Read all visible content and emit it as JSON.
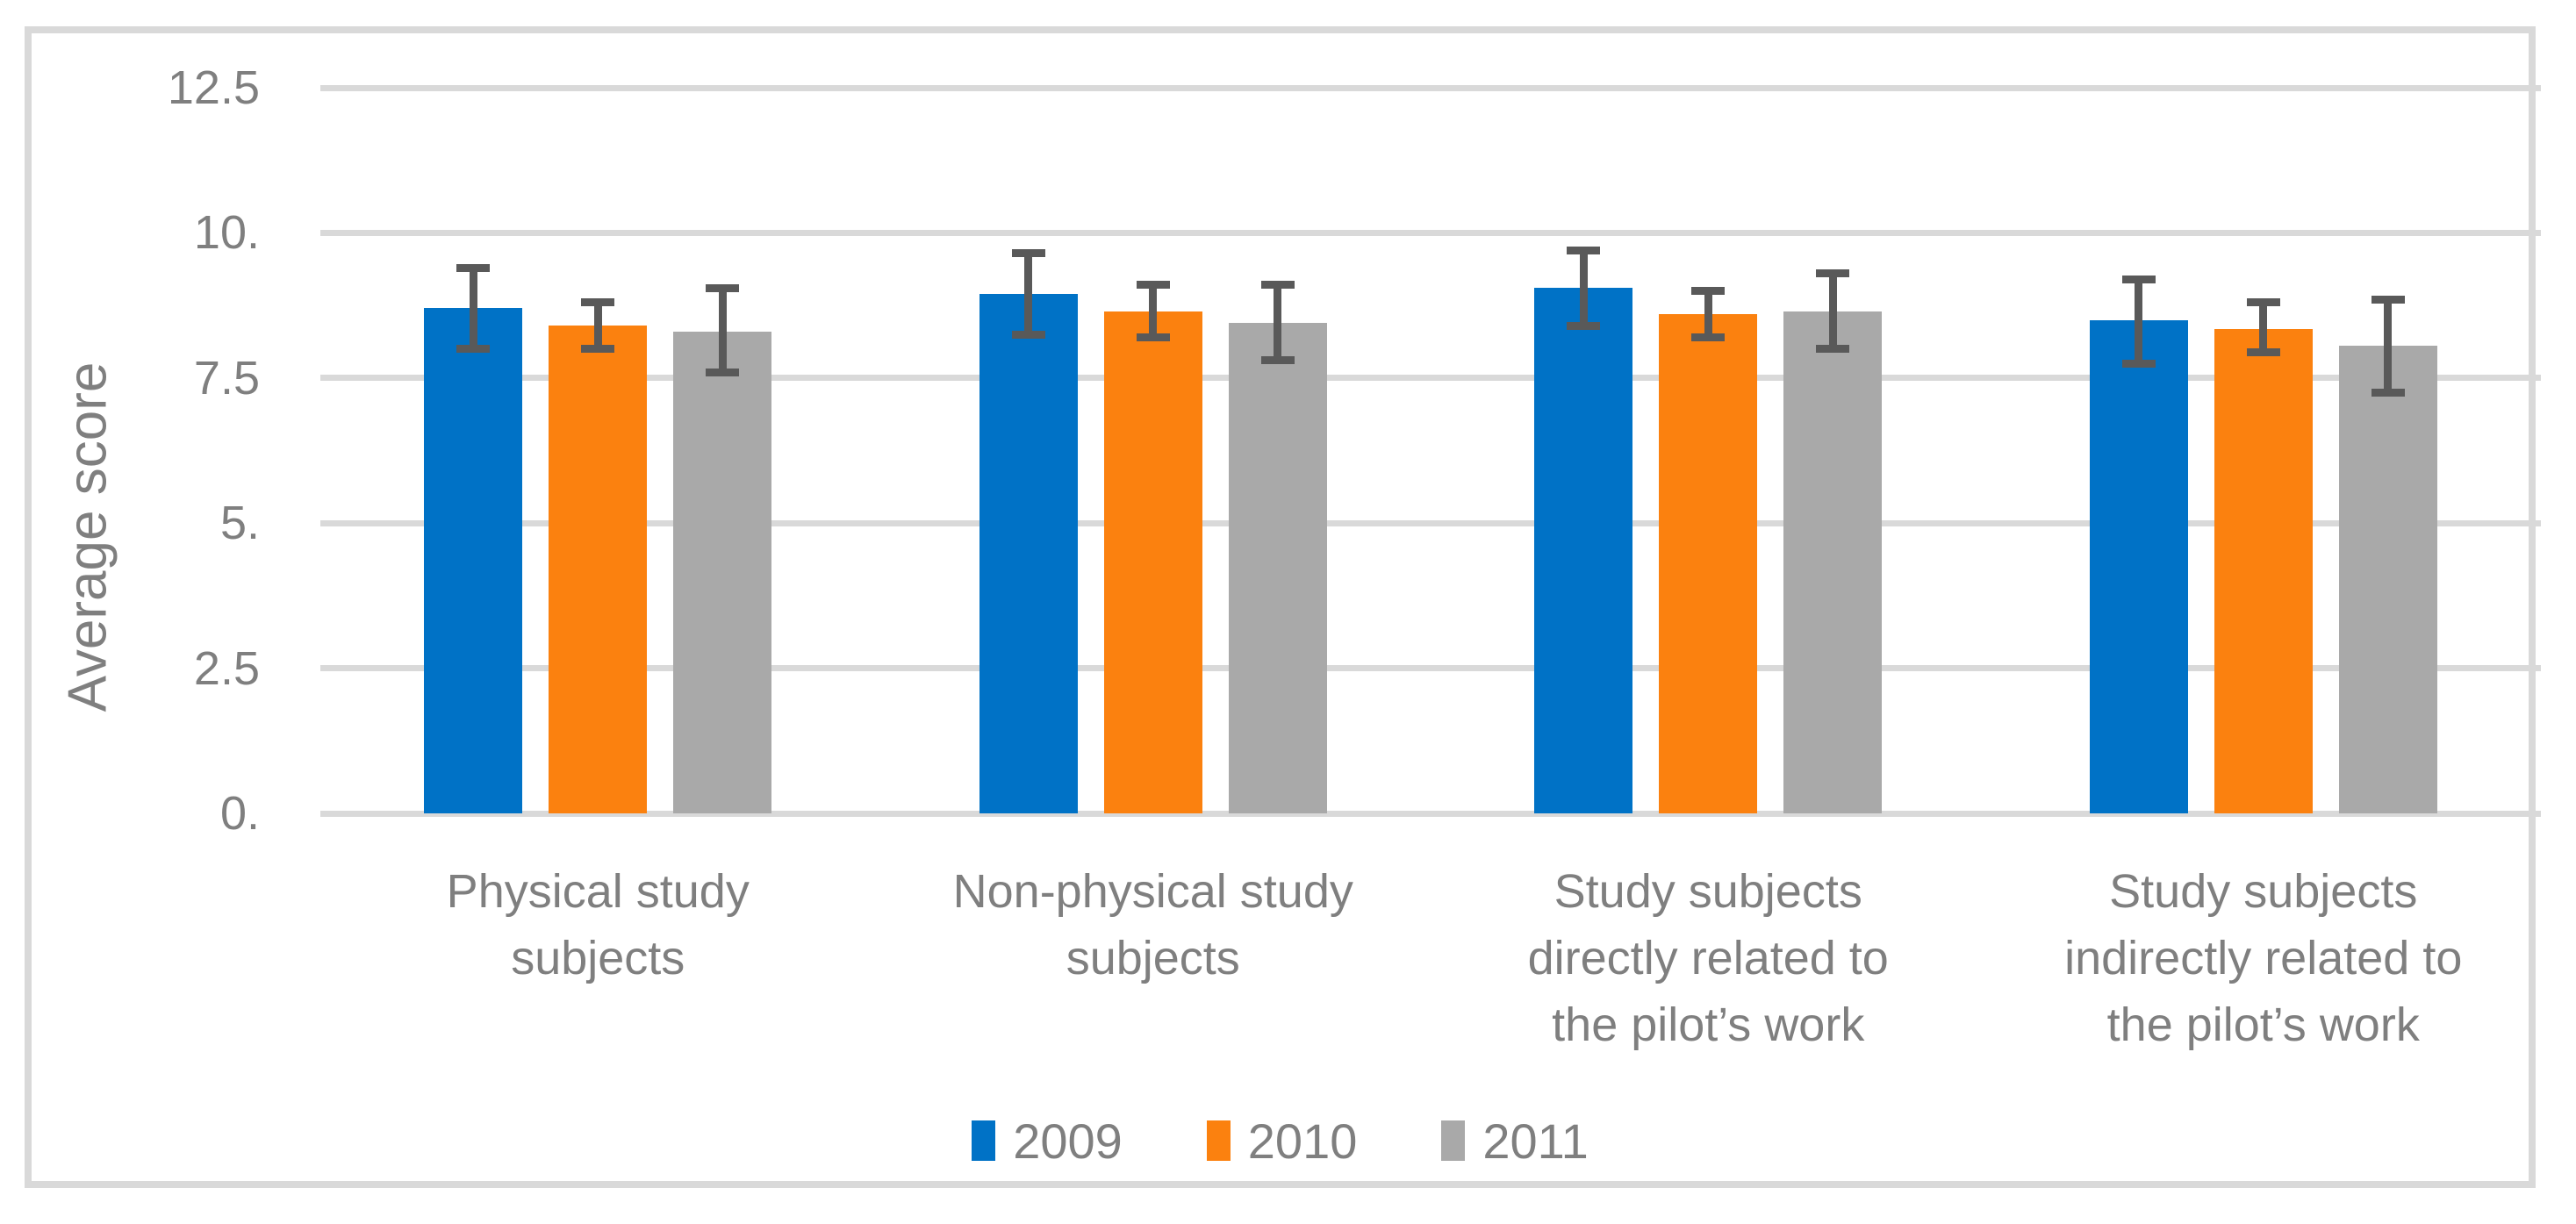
{
  "figure": {
    "background": "#FFFFFF",
    "border_color": "#D9D9D9"
  },
  "chart_data": {
    "type": "bar",
    "title": "",
    "ylabel": "Average score",
    "xlabel": "",
    "ylim": [
      0,
      12.5
    ],
    "grid": true,
    "gridline_color": "#D9D9D9",
    "error_bar_color": "#595959",
    "text_color": "#7F7F7F",
    "legend_position": "bottom",
    "yticks": [
      {
        "value": 0,
        "label": "0."
      },
      {
        "value": 2.5,
        "label": "2.5"
      },
      {
        "value": 5,
        "label": "5."
      },
      {
        "value": 7.5,
        "label": "7.5"
      },
      {
        "value": 10,
        "label": "10."
      },
      {
        "value": 12.5,
        "label": "12.5"
      }
    ],
    "categories": [
      {
        "label": "Physical study subjects",
        "lines": [
          "Physical study",
          "subjects"
        ]
      },
      {
        "label": "Non-physical study subjects",
        "lines": [
          "Non-physical study",
          "subjects"
        ]
      },
      {
        "label": "Study subjects directly related to the pilot’s work",
        "lines": [
          "Study subjects",
          "directly related to",
          "the pilot’s work"
        ]
      },
      {
        "label": "Study subjects indirectly related to the pilot’s work",
        "lines": [
          "Study subjects",
          "indirectly related to",
          "the pilot’s work"
        ]
      }
    ],
    "series": [
      {
        "name": "2009",
        "color": "#0072C6",
        "values": [
          8.7,
          8.95,
          9.05,
          8.5
        ],
        "error_upper": [
          9.4,
          9.65,
          9.7,
          9.2
        ],
        "error_lower": [
          8.0,
          8.25,
          8.4,
          7.75
        ]
      },
      {
        "name": "2010",
        "color": "#FB810F",
        "values": [
          8.4,
          8.65,
          8.6,
          8.35
        ],
        "error_upper": [
          8.8,
          9.1,
          9.0,
          8.8
        ],
        "error_lower": [
          8.0,
          8.2,
          8.2,
          7.95
        ]
      },
      {
        "name": "2011",
        "color": "#A9A9A9",
        "values": [
          8.3,
          8.45,
          8.65,
          8.05
        ],
        "error_upper": [
          9.05,
          9.1,
          9.3,
          8.85
        ],
        "error_lower": [
          7.6,
          7.8,
          8.0,
          7.25
        ]
      }
    ]
  }
}
